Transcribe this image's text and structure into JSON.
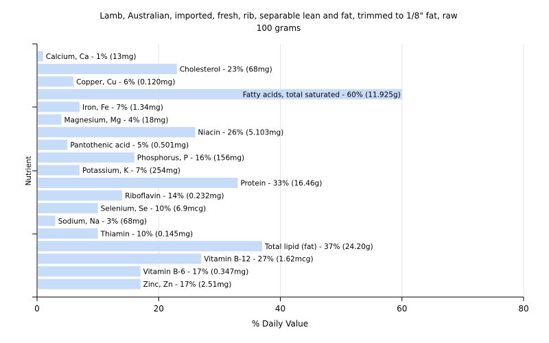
{
  "chart_data": {
    "type": "bar",
    "orientation": "horizontal",
    "title": "Lamb, Australian, imported, fresh, rib, separable lean and fat, trimmed to 1/8\" fat, raw",
    "subtitle": "100 grams",
    "xlabel": "% Daily Value",
    "ylabel": "Nutrient",
    "xlim": [
      0,
      80
    ],
    "xticks": [
      "0",
      "20",
      "40",
      "60",
      "80"
    ],
    "grid": "vertical",
    "bar_color": "#c6dcf8",
    "categories": [
      "Calcium, Ca",
      "Cholesterol",
      "Copper, Cu",
      "Fatty acids, total saturated",
      "Iron, Fe",
      "Magnesium, Mg",
      "Niacin",
      "Pantothenic acid",
      "Phosphorus, P",
      "Potassium, K",
      "Protein",
      "Riboflavin",
      "Selenium, Se",
      "Sodium, Na",
      "Thiamin",
      "Total lipid (fat)",
      "Vitamin B-12",
      "Vitamin B-6",
      "Zinc, Zn"
    ],
    "values": [
      1,
      23,
      6,
      60,
      7,
      4,
      26,
      5,
      16,
      7,
      33,
      14,
      10,
      3,
      10,
      37,
      27,
      17,
      17
    ],
    "labels": [
      "Calcium, Ca - 1% (13mg)",
      "Cholesterol - 23% (68mg)",
      "Copper, Cu - 6% (0.120mg)",
      "Fatty acids, total saturated - 60% (11.925g)",
      "Iron, Fe - 7% (1.34mg)",
      "Magnesium, Mg - 4% (18mg)",
      "Niacin - 26% (5.103mg)",
      "Pantothenic acid - 5% (0.501mg)",
      "Phosphorus, P - 16% (156mg)",
      "Potassium, K - 7% (254mg)",
      "Protein - 33% (16.46g)",
      "Riboflavin - 14% (0.232mg)",
      "Selenium, Se - 10% (6.9mcg)",
      "Sodium, Na - 3% (68mg)",
      "Thiamin - 10% (0.145mg)",
      "Total lipid (fat) - 37% (24.20g)",
      "Vitamin B-12 - 27% (1.62mcg)",
      "Vitamin B-6 - 17% (0.347mg)",
      "Zinc, Zn - 17% (2.51mg)"
    ]
  }
}
